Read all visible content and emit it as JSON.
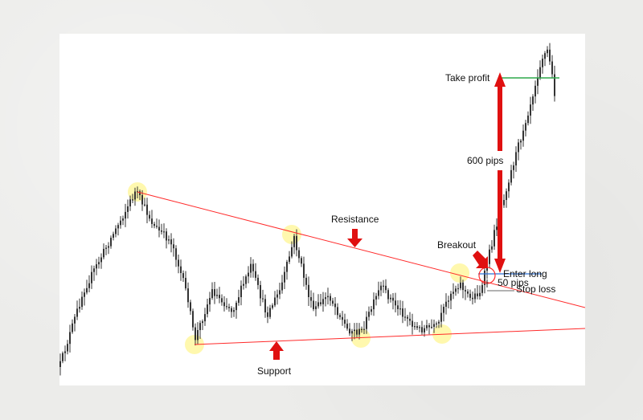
{
  "colors": {
    "candle": "#333333",
    "trendline": "#ff2a2a",
    "arrow": "#e01010",
    "take_profit_line": "#2ea84a",
    "entry_line": "#2a6fd6",
    "stop_line": "#666666",
    "pivot_highlight": "#fff36b"
  },
  "chart_data": {
    "type": "bar",
    "title": "",
    "xlabel": "",
    "ylabel": "",
    "grid": false,
    "legend": "none",
    "annotations": {
      "resistance": "Resistance",
      "support": "Support",
      "breakout": "Breakout",
      "enter_long": "Enter long",
      "stop_loss": "Stop loss",
      "take_profit": "Take profit",
      "target_distance": "600 pips",
      "stop_distance": "50 pips"
    }
  }
}
